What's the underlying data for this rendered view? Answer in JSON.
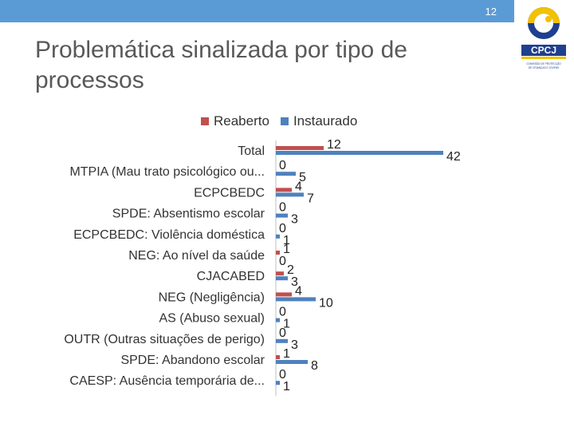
{
  "slide_number": "12",
  "logo": {
    "text": "CPCJ",
    "subtitle": "COMISSÃO DE PROTECÇÃO DE CRIANÇAS E JOVENS"
  },
  "title": "Problemática sinalizada por tipo de processos",
  "colors": {
    "reaberto": "#c0504d",
    "instaurado": "#4f81bd",
    "topbar": "#5b9bd5",
    "title": "#595959"
  },
  "chart_data": {
    "type": "bar",
    "orientation": "horizontal",
    "categories": [
      "Total",
      "MTPIA (Mau trato psicológico ou...",
      "ECPCBEDC",
      "SPDE: Absentismo escolar",
      "ECPCBEDC: Violência doméstica",
      "NEG: Ao nível da saúde",
      "CJACABED",
      "NEG (Negligência)",
      "AS (Abuso sexual)",
      "OUTR (Outras situações de perigo)",
      "SPDE: Abandono escolar",
      "CAESP: Ausência temporária de..."
    ],
    "series": [
      {
        "name": "Reaberto",
        "values": [
          12,
          0,
          4,
          0,
          0,
          1,
          2,
          4,
          0,
          0,
          1,
          0
        ]
      },
      {
        "name": "Instaurado",
        "values": [
          42,
          5,
          7,
          3,
          1,
          0,
          3,
          10,
          1,
          3,
          8,
          1
        ]
      }
    ],
    "xlim": [
      0,
      42
    ],
    "legend": "top",
    "grid": false,
    "data_labels": true
  }
}
